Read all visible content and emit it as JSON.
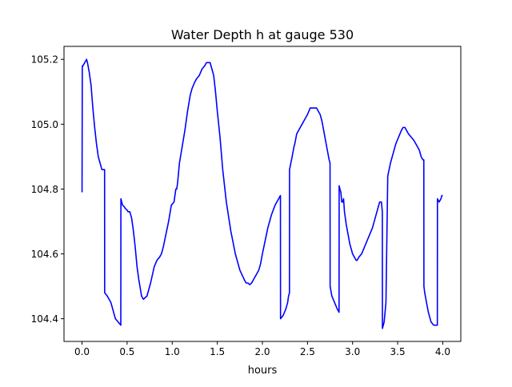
{
  "chart_data": {
    "type": "line",
    "title": "Water Depth h at gauge 530",
    "xlabel": "hours",
    "ylabel": "",
    "xlim": [
      -0.2,
      4.2
    ],
    "ylim": [
      104.33,
      105.24
    ],
    "grid": false,
    "legend": "none",
    "x_ticks": [
      0.0,
      0.5,
      1.0,
      1.5,
      2.0,
      2.5,
      3.0,
      3.5,
      4.0
    ],
    "x_tick_labels": [
      "0.0",
      "0.5",
      "1.0",
      "1.5",
      "2.0",
      "2.5",
      "3.0",
      "3.5",
      "4.0"
    ],
    "y_ticks": [
      104.4,
      104.6,
      104.8,
      105.0,
      105.2
    ],
    "y_tick_labels": [
      "104.4",
      "104.6",
      "104.8",
      "105.0",
      "105.2"
    ],
    "series": [
      {
        "color": "#0000ff",
        "x": [
          0.0,
          0.003,
          0.01,
          0.03,
          0.05,
          0.06,
          0.08,
          0.1,
          0.12,
          0.14,
          0.16,
          0.18,
          0.2,
          0.22,
          0.24,
          0.25,
          0.251,
          0.28,
          0.3,
          0.32,
          0.34,
          0.37,
          0.4,
          0.43,
          0.431,
          0.44,
          0.45,
          0.47,
          0.48,
          0.5,
          0.51,
          0.52,
          0.53,
          0.55,
          0.57,
          0.59,
          0.61,
          0.63,
          0.66,
          0.68,
          0.7,
          0.72,
          0.74,
          0.76,
          0.8,
          0.83,
          0.86,
          0.88,
          0.9,
          0.93,
          0.96,
          0.99,
          1.02,
          1.04,
          1.05,
          1.06,
          1.08,
          1.11,
          1.14,
          1.17,
          1.2,
          1.22,
          1.25,
          1.27,
          1.3,
          1.33,
          1.36,
          1.38,
          1.4,
          1.42,
          1.44,
          1.46,
          1.48,
          1.5,
          1.53,
          1.56,
          1.6,
          1.65,
          1.7,
          1.75,
          1.8,
          1.82,
          1.84,
          1.86,
          1.88,
          1.9,
          1.92,
          1.94,
          1.96,
          1.98,
          2.0,
          2.03,
          2.06,
          2.1,
          2.14,
          2.18,
          2.2,
          2.201,
          2.23,
          2.26,
          2.28,
          2.29,
          2.3,
          2.301,
          2.33,
          2.35,
          2.36,
          2.38,
          2.4,
          2.42,
          2.44,
          2.46,
          2.48,
          2.5,
          2.53,
          2.56,
          2.58,
          2.6,
          2.62,
          2.64,
          2.66,
          2.68,
          2.7,
          2.72,
          2.74,
          2.75,
          2.751,
          2.77,
          2.8,
          2.83,
          2.85,
          2.851,
          2.86,
          2.87,
          2.88,
          2.89,
          2.9,
          2.91,
          2.93,
          2.95,
          2.97,
          3.0,
          3.02,
          3.04,
          3.05,
          3.07,
          3.1,
          3.13,
          3.16,
          3.19,
          3.22,
          3.25,
          3.28,
          3.3,
          3.32,
          3.33,
          3.331,
          3.35,
          3.36,
          3.37,
          3.39,
          3.42,
          3.45,
          3.48,
          3.51,
          3.54,
          3.56,
          3.58,
          3.6,
          3.62,
          3.65,
          3.68,
          3.7,
          3.72,
          3.74,
          3.76,
          3.78,
          3.79,
          3.791,
          3.8,
          3.82,
          3.84,
          3.87,
          3.9,
          3.93,
          3.94,
          3.941,
          3.96,
          3.98,
          3.99,
          4.0
        ],
        "y": [
          104.79,
          105.18,
          105.18,
          105.19,
          105.2,
          105.19,
          105.16,
          105.12,
          105.05,
          104.99,
          104.94,
          104.9,
          104.88,
          104.86,
          104.86,
          104.86,
          104.48,
          104.47,
          104.46,
          104.45,
          104.43,
          104.4,
          104.39,
          104.38,
          104.77,
          104.76,
          104.75,
          104.745,
          104.74,
          104.735,
          104.73,
          104.73,
          104.73,
          104.71,
          104.67,
          104.62,
          104.56,
          104.52,
          104.47,
          104.46,
          104.465,
          104.47,
          104.49,
          104.51,
          104.56,
          104.58,
          104.59,
          104.6,
          104.62,
          104.66,
          104.7,
          104.75,
          104.76,
          104.8,
          104.8,
          104.82,
          104.88,
          104.93,
          104.98,
          105.04,
          105.09,
          105.11,
          105.13,
          105.14,
          105.15,
          105.17,
          105.18,
          105.19,
          105.19,
          105.19,
          105.17,
          105.15,
          105.1,
          105.04,
          104.96,
          104.86,
          104.76,
          104.67,
          104.6,
          104.55,
          104.52,
          104.51,
          104.51,
          104.505,
          104.51,
          104.52,
          104.53,
          104.54,
          104.55,
          104.57,
          104.6,
          104.64,
          104.68,
          104.72,
          104.75,
          104.77,
          104.78,
          104.4,
          104.41,
          104.43,
          104.45,
          104.47,
          104.48,
          104.86,
          104.9,
          104.93,
          104.94,
          104.97,
          104.98,
          104.99,
          105.0,
          105.01,
          105.02,
          105.03,
          105.05,
          105.05,
          105.05,
          105.05,
          105.04,
          105.03,
          105.01,
          104.98,
          104.95,
          104.92,
          104.89,
          104.88,
          104.5,
          104.47,
          104.45,
          104.43,
          104.42,
          104.81,
          104.8,
          104.79,
          104.76,
          104.76,
          104.77,
          104.73,
          104.69,
          104.66,
          104.63,
          104.6,
          104.59,
          104.58,
          104.58,
          104.59,
          104.6,
          104.62,
          104.64,
          104.66,
          104.68,
          104.71,
          104.74,
          104.76,
          104.76,
          104.73,
          104.37,
          104.39,
          104.42,
          104.45,
          104.84,
          104.88,
          104.91,
          104.94,
          104.96,
          104.98,
          104.99,
          104.99,
          104.98,
          104.97,
          104.96,
          104.95,
          104.94,
          104.93,
          104.92,
          104.9,
          104.89,
          104.89,
          104.5,
          104.48,
          104.45,
          104.42,
          104.39,
          104.38,
          104.38,
          104.38,
          104.77,
          104.76,
          104.77,
          104.78,
          104.78
        ]
      }
    ]
  }
}
